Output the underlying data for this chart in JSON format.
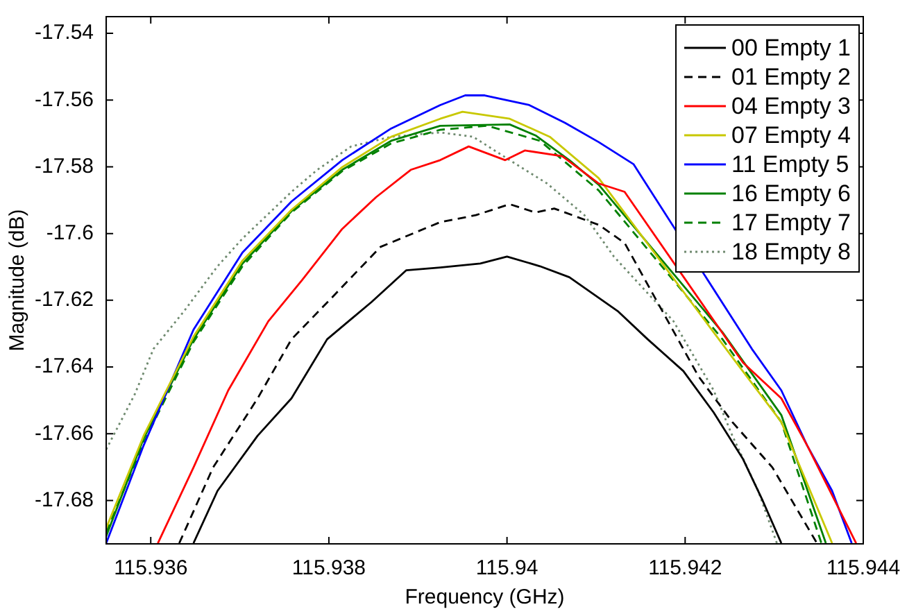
{
  "chart_data": {
    "type": "line",
    "xlabel": "Frequency (GHz)",
    "ylabel": "Magnitude (dB)",
    "xlim": [
      115.9355,
      115.944
    ],
    "xticks": [
      115.936,
      115.938,
      115.94,
      115.942,
      115.944
    ],
    "ylim": [
      -17.693,
      -17.535
    ],
    "yticks": [
      -17.54,
      -17.56,
      -17.58,
      -17.6,
      -17.62,
      -17.64,
      -17.66,
      -17.68
    ],
    "grid": false,
    "legend": "top right",
    "marker": "none",
    "series": [
      {
        "name": "00 Empty 1",
        "color": "#000000",
        "line_style": "solid",
        "x": [
          115.93648,
          115.93675,
          115.9372,
          115.93758,
          115.93798,
          115.93848,
          115.93887,
          115.93925,
          115.9397,
          115.94,
          115.94037,
          115.9407,
          115.94125,
          115.94158,
          115.94198,
          115.94232,
          115.94265,
          115.94287,
          115.94308
        ],
        "values": [
          -17.6928,
          -17.6771,
          -17.6606,
          -17.6494,
          -17.6317,
          -17.6205,
          -17.611,
          -17.6102,
          -17.609,
          -17.6069,
          -17.6098,
          -17.6131,
          -17.6234,
          -17.6317,
          -17.6412,
          -17.6536,
          -17.6676,
          -17.68,
          -17.6928
        ]
      },
      {
        "name": "01 Empty 2",
        "color": "#000000",
        "line_style": "dashed",
        "x": [
          115.93632,
          115.9367,
          115.9372,
          115.93758,
          115.93803,
          115.93858,
          115.93925,
          115.93965,
          115.94003,
          115.94032,
          115.94053,
          115.94103,
          115.94132,
          115.94215,
          115.94253,
          115.94298,
          115.94348
        ],
        "values": [
          -17.6928,
          -17.6701,
          -17.6494,
          -17.6317,
          -17.6193,
          -17.604,
          -17.5966,
          -17.5945,
          -17.5912,
          -17.5937,
          -17.5925,
          -17.5974,
          -17.6028,
          -17.6428,
          -17.6565,
          -17.6701,
          -17.6928
        ]
      },
      {
        "name": "04 Empty 3",
        "color": "#ff0000",
        "line_style": "solid",
        "x": [
          115.93608,
          115.93648,
          115.93687,
          115.93732,
          115.9377,
          115.93815,
          115.93853,
          115.93892,
          115.93925,
          115.93957,
          115.93998,
          115.9402,
          115.94062,
          115.94103,
          115.94132,
          115.94265,
          115.94308,
          115.94337,
          115.94392
        ],
        "values": [
          -17.6928,
          -17.6701,
          -17.647,
          -17.6263,
          -17.6139,
          -17.5986,
          -17.5891,
          -17.5809,
          -17.578,
          -17.5739,
          -17.578,
          -17.5751,
          -17.5768,
          -17.585,
          -17.5875,
          -17.6387,
          -17.6494,
          -17.6635,
          -17.6928
        ]
      },
      {
        "name": "07 Empty 4",
        "color": "#c8c800",
        "line_style": "solid",
        "x": [
          115.9355,
          115.93592,
          115.93648,
          115.93703,
          115.93758,
          115.93815,
          115.9387,
          115.93925,
          115.9395,
          115.94003,
          115.94048,
          115.94103,
          115.94253,
          115.94308,
          115.94365
        ],
        "values": [
          -17.6883,
          -17.6606,
          -17.6309,
          -17.6081,
          -17.5929,
          -17.5801,
          -17.571,
          -17.5656,
          -17.5635,
          -17.5656,
          -17.571,
          -17.5834,
          -17.6371,
          -17.6565,
          -17.6928
        ]
      },
      {
        "name": "11 Empty 5",
        "color": "#0000ff",
        "line_style": "solid",
        "x": [
          115.9355,
          115.93592,
          115.93648,
          115.93703,
          115.93758,
          115.93815,
          115.9387,
          115.93925,
          115.93953,
          115.93975,
          115.94025,
          115.94065,
          115.94103,
          115.94142,
          115.94275,
          115.94308,
          115.94337,
          115.94365,
          115.94387
        ],
        "values": [
          -17.6928,
          -17.6635,
          -17.6288,
          -17.6057,
          -17.5904,
          -17.578,
          -17.5685,
          -17.5615,
          -17.5586,
          -17.5586,
          -17.5615,
          -17.5668,
          -17.5726,
          -17.5792,
          -17.6346,
          -17.647,
          -17.6635,
          -17.6771,
          -17.6928
        ]
      },
      {
        "name": "16 Empty 6",
        "color": "#008000",
        "line_style": "solid",
        "x": [
          115.9355,
          115.93592,
          115.93648,
          115.93703,
          115.93758,
          115.93815,
          115.9387,
          115.93925,
          115.94003,
          115.94032,
          115.9407,
          115.94103,
          115.94242,
          115.94308,
          115.94358
        ],
        "values": [
          -17.6907,
          -17.6614,
          -17.6317,
          -17.609,
          -17.5933,
          -17.5809,
          -17.5722,
          -17.5677,
          -17.5673,
          -17.5706,
          -17.578,
          -17.5854,
          -17.6296,
          -17.6544,
          -17.6928
        ]
      },
      {
        "name": "17 Empty 7",
        "color": "#008000",
        "line_style": "dashed",
        "x": [
          115.9355,
          115.93592,
          115.93648,
          115.93703,
          115.93758,
          115.93815,
          115.9387,
          115.93925,
          115.93978,
          115.94037,
          115.94103,
          115.94242,
          115.94308,
          115.94353
        ],
        "values": [
          -17.6895,
          -17.6627,
          -17.6325,
          -17.6098,
          -17.5937,
          -17.5813,
          -17.573,
          -17.5689,
          -17.5677,
          -17.5722,
          -17.5871,
          -17.6317,
          -17.6565,
          -17.6928
        ]
      },
      {
        "name": "18 Empty 8",
        "color": "#6f8a6f",
        "line_style": "dotted",
        "x": [
          115.9355,
          115.93582,
          115.93603,
          115.93637,
          115.93675,
          115.93703,
          115.93758,
          115.93787,
          115.93825,
          115.9387,
          115.93925,
          115.93962,
          115.94003,
          115.94045,
          115.94087,
          115.9412,
          115.94187,
          115.94232,
          115.94253,
          115.94282,
          115.94303
        ],
        "values": [
          -17.6647,
          -17.6482,
          -17.6346,
          -17.6234,
          -17.6098,
          -17.6015,
          -17.5875,
          -17.5809,
          -17.5739,
          -17.571,
          -17.5697,
          -17.571,
          -17.578,
          -17.585,
          -17.5945,
          -17.6069,
          -17.6263,
          -17.647,
          -17.6606,
          -17.6771,
          -17.6928
        ]
      }
    ]
  }
}
